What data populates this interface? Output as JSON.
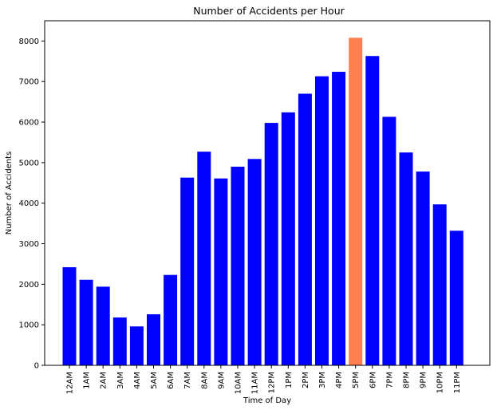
{
  "chart_data": {
    "type": "bar",
    "title": "Number of Accidents per Hour",
    "xlabel": "Time of Day",
    "ylabel": "Number of Accidents",
    "ylim": [
      0,
      8500
    ],
    "yticks": [
      0,
      1000,
      2000,
      3000,
      4000,
      5000,
      6000,
      7000,
      8000
    ],
    "categories": [
      "12AM",
      "1AM",
      "2AM",
      "3AM",
      "4AM",
      "5AM",
      "6AM",
      "7AM",
      "8AM",
      "9AM",
      "10AM",
      "11AM",
      "12PM",
      "1PM",
      "2PM",
      "3PM",
      "4PM",
      "5PM",
      "6PM",
      "7PM",
      "8PM",
      "9PM",
      "10PM",
      "11PM"
    ],
    "values": [
      2420,
      2110,
      1940,
      1180,
      960,
      1260,
      2230,
      4630,
      5270,
      4610,
      4900,
      5090,
      5980,
      6240,
      6700,
      7130,
      7240,
      8080,
      7630,
      6130,
      5250,
      4780,
      3970,
      3320
    ],
    "colors": {
      "default": "#0000ff",
      "highlight": "#ff7f50"
    },
    "highlight_category": "5PM",
    "grid": false,
    "legend": "none"
  }
}
